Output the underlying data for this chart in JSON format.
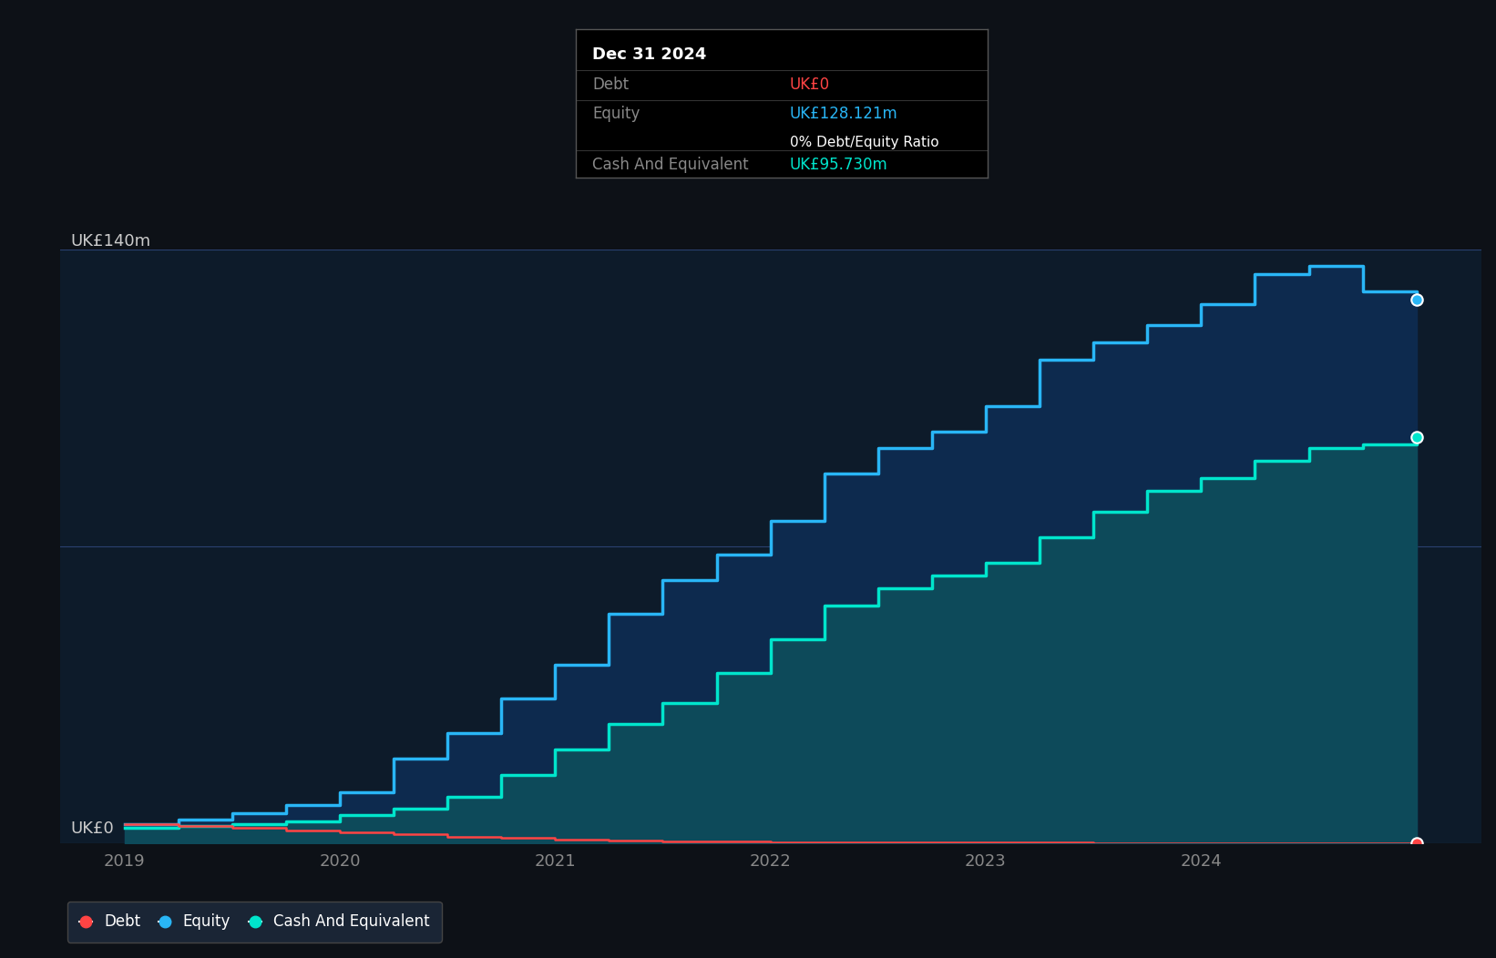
{
  "background_color": "#0d1117",
  "plot_bg_color": "#0d1b2a",
  "ylabel": "UK£140m",
  "y0_label": "UK£0",
  "ylim": [
    0,
    140
  ],
  "xlim_start": 2018.7,
  "xlim_end": 2025.3,
  "xtick_years": [
    2019,
    2020,
    2021,
    2022,
    2023,
    2024
  ],
  "equity_color": "#29b6f6",
  "equity_fill_top": "#0d2a4e",
  "equity_fill_bot": "#071828",
  "cash_color": "#00e5cc",
  "cash_fill_top": "#0d4a5a",
  "cash_fill_bot": "#072030",
  "debt_color": "#ff4444",
  "tooltip": {
    "date": "Dec 31 2024",
    "debt_label": "Debt",
    "debt_value": "UK£0",
    "debt_color": "#ff4444",
    "equity_label": "Equity",
    "equity_value": "UK£128.121m",
    "equity_color": "#29b6f6",
    "ratio_text": "0% Debt/Equity Ratio",
    "cash_label": "Cash And Equivalent",
    "cash_value": "UK£95.730m",
    "cash_color": "#00e5cc"
  },
  "equity_data": {
    "x": [
      2019.0,
      2019.25,
      2019.5,
      2019.75,
      2020.0,
      2020.25,
      2020.5,
      2020.75,
      2021.0,
      2021.25,
      2021.5,
      2021.75,
      2022.0,
      2022.25,
      2022.5,
      2022.75,
      2023.0,
      2023.25,
      2023.5,
      2023.75,
      2024.0,
      2024.25,
      2024.5,
      2024.75,
      2025.0
    ],
    "y": [
      4.5,
      5.5,
      7,
      9,
      12,
      20,
      26,
      34,
      42,
      54,
      62,
      68,
      76,
      87,
      93,
      97,
      103,
      114,
      118,
      122,
      127,
      134,
      136,
      130,
      128
    ]
  },
  "cash_data": {
    "x": [
      2019.0,
      2019.25,
      2019.5,
      2019.75,
      2020.0,
      2020.25,
      2020.5,
      2020.75,
      2021.0,
      2021.25,
      2021.5,
      2021.75,
      2022.0,
      2022.25,
      2022.5,
      2022.75,
      2023.0,
      2023.25,
      2023.5,
      2023.75,
      2024.0,
      2024.25,
      2024.5,
      2024.75,
      2025.0
    ],
    "y": [
      3.5,
      4,
      4.5,
      5,
      6.5,
      8,
      11,
      16,
      22,
      28,
      33,
      40,
      48,
      56,
      60,
      63,
      66,
      72,
      78,
      83,
      86,
      90,
      93,
      94,
      95.73
    ]
  },
  "debt_data": {
    "x": [
      2019.0,
      2019.25,
      2019.5,
      2019.75,
      2020.0,
      2020.25,
      2020.5,
      2020.75,
      2021.0,
      2021.25,
      2021.5,
      2021.75,
      2022.0,
      2022.25,
      2022.5,
      2022.75,
      2023.0,
      2023.25,
      2023.5,
      2023.75,
      2024.0,
      2024.25,
      2024.5,
      2024.75,
      2025.0
    ],
    "y": [
      4.5,
      4.0,
      3.5,
      3.0,
      2.5,
      2.0,
      1.5,
      1.2,
      0.9,
      0.6,
      0.4,
      0.3,
      0.2,
      0.15,
      0.12,
      0.1,
      0.08,
      0.06,
      0.04,
      0.03,
      0.02,
      0.015,
      0.01,
      0.005,
      0
    ]
  },
  "legend_items": [
    {
      "label": "Debt",
      "color": "#ff4444"
    },
    {
      "label": "Equity",
      "color": "#29b6f6"
    },
    {
      "label": "Cash And Equivalent",
      "color": "#00e5cc"
    }
  ]
}
